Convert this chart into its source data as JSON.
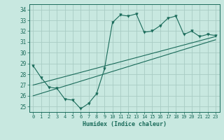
{
  "xlabel": "Humidex (Indice chaleur)",
  "ylabel": "",
  "background_color": "#c8e8e0",
  "grid_color": "#a8ccc4",
  "line_color": "#1a6b5a",
  "x_ticks": [
    0,
    1,
    2,
    3,
    4,
    5,
    6,
    7,
    8,
    9,
    10,
    11,
    12,
    13,
    14,
    15,
    16,
    17,
    18,
    19,
    20,
    21,
    22,
    23
  ],
  "y_ticks": [
    25,
    26,
    27,
    28,
    29,
    30,
    31,
    32,
    33,
    34
  ],
  "ylim": [
    24.5,
    34.5
  ],
  "xlim": [
    -0.5,
    23.5
  ],
  "curve1_x": [
    0,
    1,
    2,
    3,
    4,
    5,
    6,
    7,
    8,
    9,
    10,
    11,
    12,
    13,
    14,
    15,
    16,
    17,
    18,
    19,
    20,
    21,
    22,
    23
  ],
  "curve1_y": [
    28.8,
    27.7,
    26.8,
    26.7,
    25.7,
    25.6,
    24.8,
    25.3,
    26.2,
    28.5,
    32.8,
    33.5,
    33.4,
    33.6,
    31.9,
    32.0,
    32.5,
    33.2,
    33.4,
    31.7,
    32.0,
    31.5,
    31.7,
    31.6
  ],
  "curve2_x": [
    0,
    23
  ],
  "curve2_y": [
    27.0,
    31.5
  ],
  "curve3_x": [
    0,
    23
  ],
  "curve3_y": [
    26.0,
    31.2
  ]
}
